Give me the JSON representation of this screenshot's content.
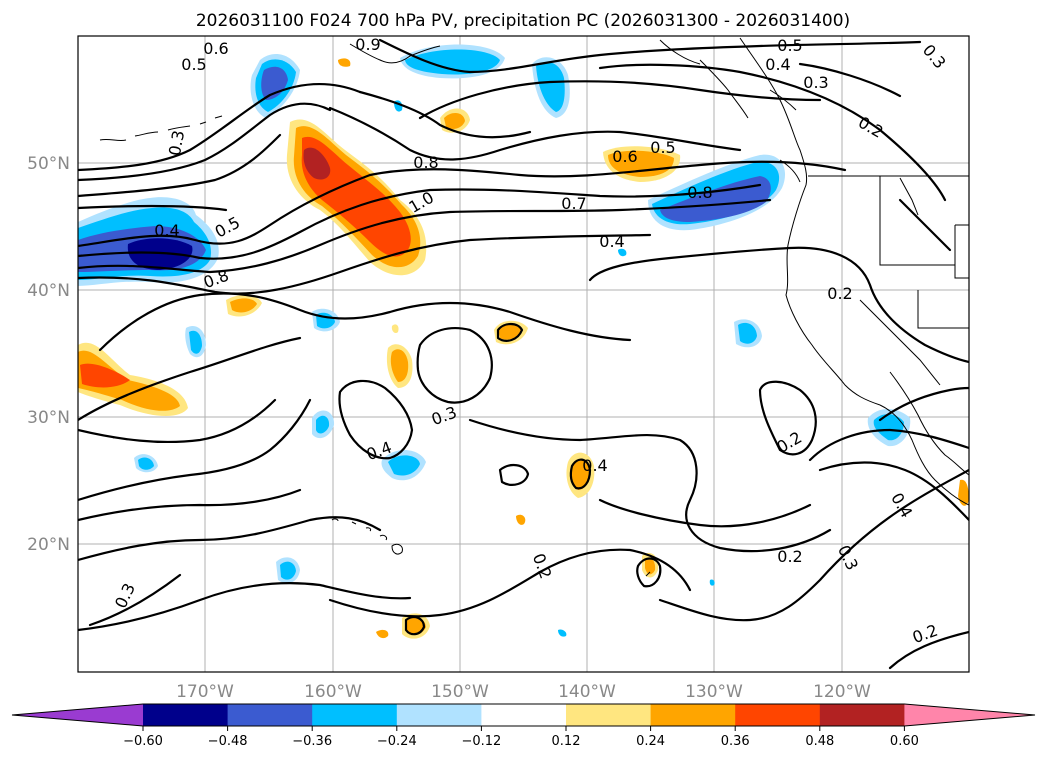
{
  "title": "2026031100 F024 700 hPa PV, precipitation PC (2026031300 - 2026031400)",
  "lat_labels": [
    "50°N",
    "40°N",
    "30°N",
    "20°N"
  ],
  "lon_labels": [
    "170°W",
    "160°W",
    "150°W",
    "140°W",
    "130°W",
    "120°W"
  ],
  "contour_labels": [
    "0.6",
    "0.5",
    "0.3",
    "0.4",
    "0.8",
    "1.0",
    "0.5",
    "0.8",
    "0.7",
    "0.4",
    "0.6",
    "0.5",
    "0.8",
    "0.5",
    "0.4",
    "0.3",
    "0.2",
    "0.2",
    "0.3",
    "0.4",
    "0.4",
    "0.2",
    "0.2",
    "0.4",
    "0.2",
    "0.3",
    "0.2",
    "0.3",
    "0.9",
    "0.3"
  ],
  "colorbar": {
    "ticks": [
      "−0.60",
      "−0.48",
      "−0.36",
      "−0.24",
      "−0.12",
      "0.12",
      "0.24",
      "0.36",
      "0.48",
      "0.60"
    ],
    "colors": [
      "#9a3bd1",
      "#00008b",
      "#3b5bd0",
      "#00bfff",
      "#b0e2ff",
      "#ffffff",
      "#ffe680",
      "#ffa500",
      "#ff4500",
      "#b22222",
      "#ff85aa"
    ]
  }
}
